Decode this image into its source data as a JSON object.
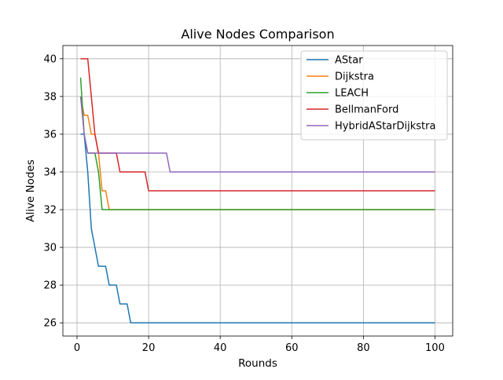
{
  "chart_data": {
    "type": "line",
    "title": "Alive Nodes Comparison",
    "xlabel": "Rounds",
    "ylabel": "Alive Nodes",
    "xlim": [
      -3.95,
      104.95
    ],
    "ylim": [
      25.3,
      40.7
    ],
    "xticks": [
      0,
      20,
      40,
      60,
      80,
      100
    ],
    "yticks": [
      26,
      28,
      30,
      32,
      34,
      36,
      38,
      40
    ],
    "grid": true,
    "legend_position": "top-right",
    "series": [
      {
        "name": "AStar",
        "color": "#1f77b4",
        "points": [
          [
            1,
            36
          ],
          [
            2,
            36
          ],
          [
            3,
            34
          ],
          [
            4,
            31
          ],
          [
            5,
            30
          ],
          [
            6,
            29
          ],
          [
            7,
            29
          ],
          [
            8,
            29
          ],
          [
            9,
            28
          ],
          [
            10,
            28
          ],
          [
            11,
            28
          ],
          [
            12,
            27
          ],
          [
            13,
            27
          ],
          [
            14,
            27
          ],
          [
            15,
            26
          ],
          [
            100,
            26
          ]
        ]
      },
      {
        "name": "Dijkstra",
        "color": "#ff7f0e",
        "points": [
          [
            1,
            38
          ],
          [
            2,
            37
          ],
          [
            3,
            37
          ],
          [
            4,
            36
          ],
          [
            5,
            36
          ],
          [
            6,
            35
          ],
          [
            7,
            33
          ],
          [
            8,
            33
          ],
          [
            9,
            32
          ],
          [
            100,
            32
          ]
        ]
      },
      {
        "name": "LEACH",
        "color": "#2ca02c",
        "points": [
          [
            1,
            39
          ],
          [
            2,
            36
          ],
          [
            3,
            35
          ],
          [
            4,
            35
          ],
          [
            5,
            35
          ],
          [
            6,
            34
          ],
          [
            7,
            32
          ],
          [
            100,
            32
          ]
        ]
      },
      {
        "name": "BellmanFord",
        "color": "#d62728",
        "points": [
          [
            1,
            40
          ],
          [
            2,
            40
          ],
          [
            3,
            40
          ],
          [
            4,
            38
          ],
          [
            5,
            36
          ],
          [
            6,
            35
          ],
          [
            7,
            35
          ],
          [
            11,
            35
          ],
          [
            12,
            34
          ],
          [
            19,
            34
          ],
          [
            20,
            33
          ],
          [
            100,
            33
          ]
        ]
      },
      {
        "name": "HybridAStarDijkstra",
        "color": "#9467bd",
        "points": [
          [
            1,
            38
          ],
          [
            2,
            36
          ],
          [
            3,
            35
          ],
          [
            25,
            35
          ],
          [
            26,
            34
          ],
          [
            100,
            34
          ]
        ]
      }
    ]
  }
}
